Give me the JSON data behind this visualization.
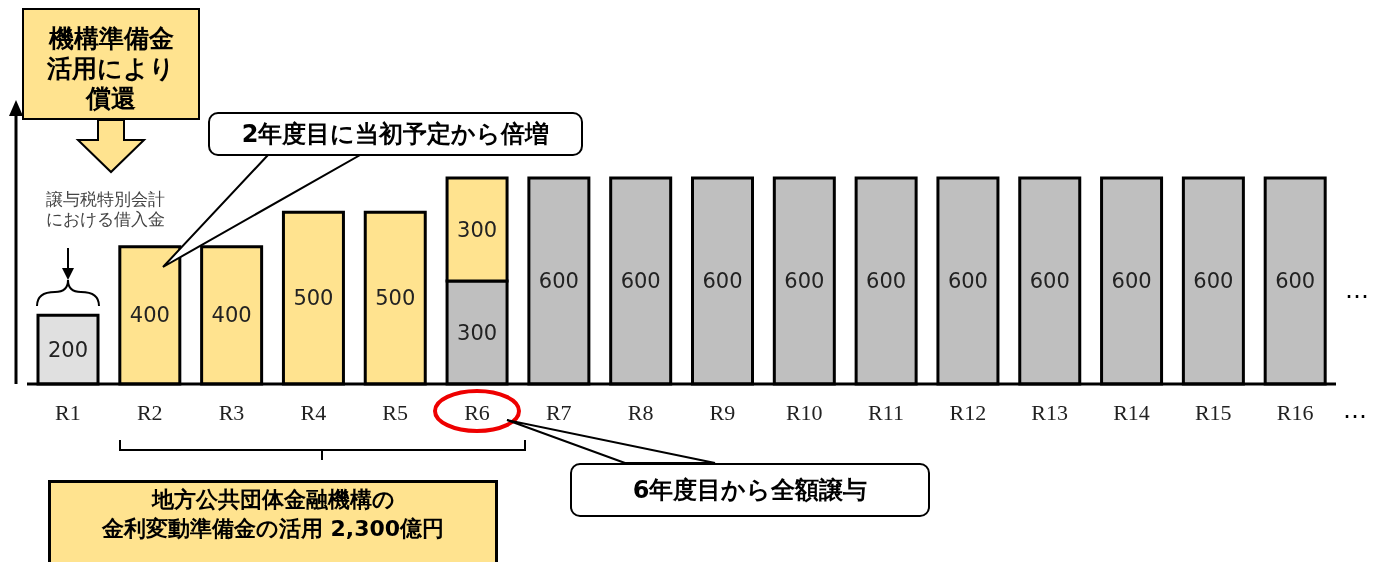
{
  "chart_data": {
    "type": "bar",
    "stacked": true,
    "data_labels": true,
    "categories": [
      "R1",
      "R2",
      "R3",
      "R4",
      "R5",
      "R6",
      "R7",
      "R8",
      "R9",
      "R10",
      "R11",
      "R12",
      "R13",
      "R14",
      "R15",
      "R16"
    ],
    "series": [
      {
        "color": "#e0e0e0",
        "values": [
          200,
          null,
          null,
          null,
          null,
          null,
          null,
          null,
          null,
          null,
          null,
          null,
          null,
          null,
          null,
          null
        ]
      },
      {
        "color": "#bfbfbf",
        "values": [
          null,
          null,
          null,
          null,
          null,
          300,
          600,
          600,
          600,
          600,
          600,
          600,
          600,
          600,
          600,
          600
        ]
      },
      {
        "color": "#ffe38f",
        "values": [
          null,
          400,
          400,
          500,
          500,
          300,
          null,
          null,
          null,
          null,
          null,
          null,
          null,
          null,
          null,
          null
        ]
      }
    ],
    "annotations": [
      "機構準備金活用により償還",
      "譲与税特別会計における借入金",
      "2年度目に当初予定から倍増",
      "6年度目から全額譲与",
      "地方公共団体金融機構の",
      "金利変動準備金の活用 2,300億円",
      "…",
      "…"
    ]
  }
}
